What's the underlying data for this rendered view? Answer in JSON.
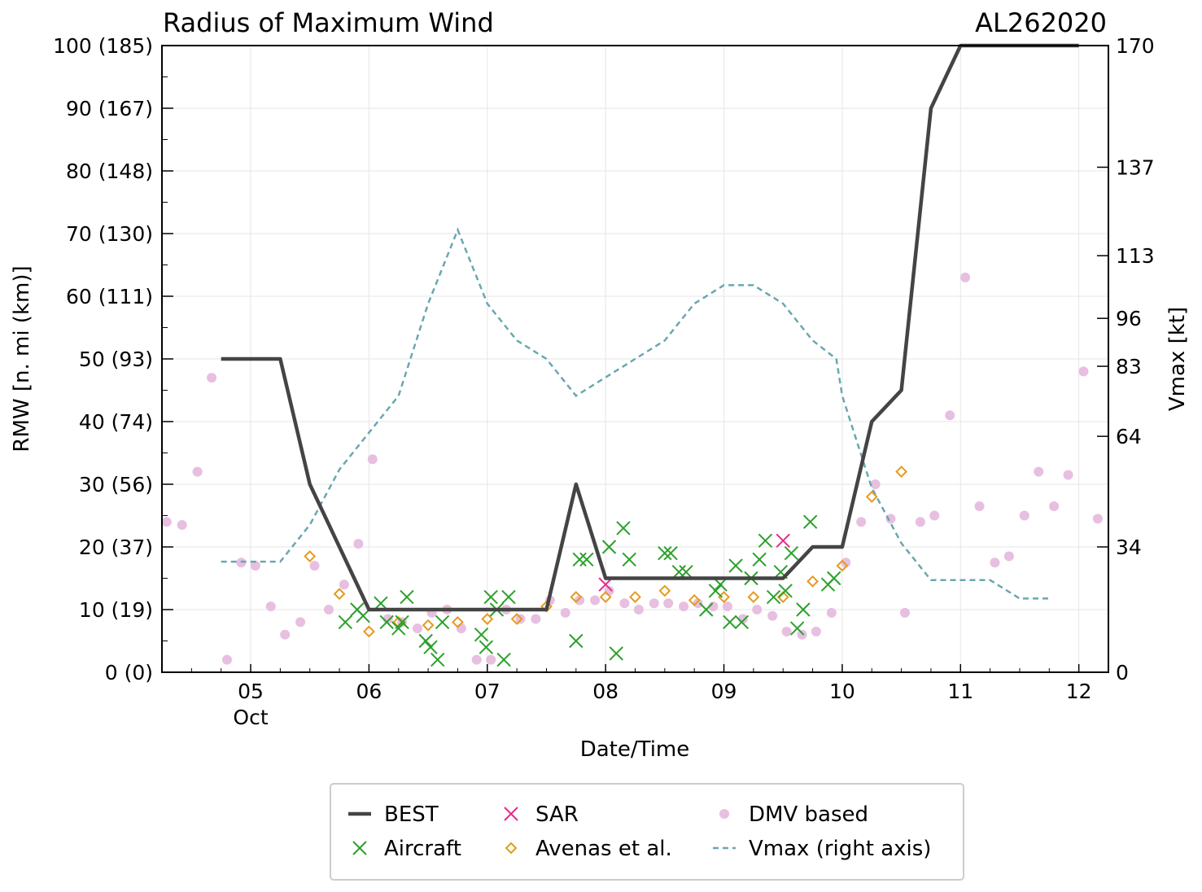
{
  "chart_data": {
    "type": "line+scatter",
    "title": "Radius of Maximum Wind",
    "storm_id": "AL262020",
    "xlabel": "Date/Time",
    "ylabel": "RMW [n. mi (km)]",
    "ylabel_right": "Vmax [kt]",
    "xlim": [
      4.25,
      12.25
    ],
    "ylim": [
      0,
      100
    ],
    "ylim_right": [
      0,
      170
    ],
    "x_ticks": [
      {
        "value": 5,
        "label": "05",
        "sublabel": "Oct"
      },
      {
        "value": 6,
        "label": "06",
        "sublabel": ""
      },
      {
        "value": 7,
        "label": "07",
        "sublabel": ""
      },
      {
        "value": 8,
        "label": "08",
        "sublabel": ""
      },
      {
        "value": 9,
        "label": "09",
        "sublabel": ""
      },
      {
        "value": 10,
        "label": "10",
        "sublabel": ""
      },
      {
        "value": 11,
        "label": "11",
        "sublabel": ""
      },
      {
        "value": 12,
        "label": "12",
        "sublabel": ""
      }
    ],
    "y_ticks": [
      {
        "value": 0,
        "label": "0 (0)"
      },
      {
        "value": 10,
        "label": "10 (19)"
      },
      {
        "value": 20,
        "label": "20 (37)"
      },
      {
        "value": 30,
        "label": "30 (56)"
      },
      {
        "value": 40,
        "label": "40 (74)"
      },
      {
        "value": 50,
        "label": "50 (93)"
      },
      {
        "value": 60,
        "label": "60 (111)"
      },
      {
        "value": 70,
        "label": "70 (130)"
      },
      {
        "value": 80,
        "label": "80 (148)"
      },
      {
        "value": 90,
        "label": "90 (167)"
      },
      {
        "value": 100,
        "label": "100 (185)"
      }
    ],
    "y_right_ticks": [
      {
        "value": 0,
        "label": "0"
      },
      {
        "value": 34,
        "label": "34"
      },
      {
        "value": 64,
        "label": "64"
      },
      {
        "value": 83,
        "label": "83"
      },
      {
        "value": 96,
        "label": "96"
      },
      {
        "value": 113,
        "label": "113"
      },
      {
        "value": 137,
        "label": "137"
      },
      {
        "value": 170,
        "label": "170"
      }
    ],
    "series": {
      "best": {
        "name": "BEST",
        "color": "#444444",
        "x": [
          4.75,
          5.25,
          5.5,
          6.0,
          6.5,
          7.0,
          7.5,
          7.75,
          8.0,
          8.5,
          9.0,
          9.5,
          9.75,
          10.0,
          10.25,
          10.5,
          10.75,
          11.0,
          11.25,
          11.5,
          11.75,
          12.0
        ],
        "y": [
          50,
          50,
          30,
          10,
          10,
          10,
          10,
          30,
          15,
          15,
          15,
          15,
          20,
          20,
          40,
          45,
          90,
          100,
          100,
          100,
          100,
          100
        ]
      },
      "aircraft": {
        "name": "Aircraft",
        "color": "#2ca02c",
        "x": [
          5.8,
          5.9,
          5.95,
          6.1,
          6.15,
          6.25,
          6.28,
          6.32,
          6.48,
          6.52,
          6.58,
          6.62,
          6.95,
          6.99,
          7.03,
          7.08,
          7.14,
          7.18,
          7.75,
          7.78,
          7.84,
          8.03,
          8.09,
          8.15,
          8.2,
          8.5,
          8.55,
          8.62,
          8.68,
          8.85,
          8.93,
          8.97,
          9.05,
          9.1,
          9.15,
          9.23,
          9.3,
          9.35,
          9.42,
          9.48,
          9.52,
          9.57,
          9.62,
          9.67,
          9.73,
          9.88,
          9.93
        ],
        "y": [
          8,
          10,
          9,
          11,
          8,
          7,
          8,
          12,
          5,
          4,
          2,
          8,
          6,
          4,
          12,
          10,
          2,
          12,
          5,
          18,
          18,
          20,
          3,
          23,
          18,
          19,
          19,
          16,
          16,
          10,
          13,
          14,
          8,
          17,
          8,
          15,
          18,
          21,
          12,
          16,
          13,
          19,
          7,
          10,
          24,
          14,
          15
        ]
      },
      "sar": {
        "name": "SAR",
        "color": "#e7298a",
        "x": [
          8.0,
          9.5
        ],
        "y": [
          14,
          21
        ]
      },
      "avenas": {
        "name": "Avenas et al.",
        "color": "#e69a1f",
        "x": [
          5.5,
          5.75,
          6.0,
          6.25,
          6.5,
          6.75,
          7.0,
          7.25,
          7.5,
          7.75,
          8.0,
          8.25,
          8.5,
          8.75,
          9.0,
          9.25,
          9.5,
          9.75,
          10.0,
          10.25,
          10.5
        ],
        "y": [
          18.5,
          12.5,
          6.5,
          8,
          7.5,
          8,
          8.5,
          8.5,
          10.5,
          12,
          12,
          12,
          13,
          11.5,
          12,
          12,
          12,
          14.5,
          17,
          28,
          32
        ]
      },
      "dmv": {
        "name": "DMV based",
        "color": "#e7bfe0",
        "x": [
          4.29,
          4.42,
          4.55,
          4.67,
          4.8,
          4.92,
          5.04,
          5.17,
          5.29,
          5.42,
          5.54,
          5.66,
          5.79,
          5.91,
          6.03,
          6.16,
          6.28,
          6.41,
          6.53,
          6.66,
          6.78,
          6.91,
          7.03,
          7.16,
          7.28,
          7.41,
          7.53,
          7.66,
          7.78,
          7.91,
          8.03,
          8.16,
          8.28,
          8.41,
          8.53,
          8.66,
          8.78,
          8.91,
          9.03,
          9.16,
          9.28,
          9.41,
          9.53,
          9.66,
          9.78,
          9.91,
          10.03,
          10.16,
          10.28,
          10.41,
          10.53,
          10.66,
          10.78,
          10.91,
          11.04,
          11.16,
          11.29,
          11.41,
          11.54,
          11.66,
          11.79,
          11.91,
          12.04,
          12.16
        ],
        "y": [
          24,
          23.5,
          32,
          47,
          2,
          17.5,
          17,
          10.5,
          6,
          8,
          17,
          10,
          14,
          20.5,
          34,
          8.5,
          8,
          7,
          9.5,
          10,
          7,
          2,
          2,
          10,
          8.5,
          8.5,
          11.5,
          9.5,
          11.5,
          11.5,
          13,
          11,
          10,
          11,
          11,
          10.5,
          11,
          10.5,
          10.5,
          8.5,
          10,
          9,
          6.5,
          6,
          6.5,
          9.5,
          17.5,
          24,
          30,
          24.5,
          9.5,
          24,
          25,
          41,
          63,
          26.5,
          17.5,
          18.5,
          25,
          32,
          26.5,
          31.5,
          48,
          24.5
        ]
      },
      "vmax": {
        "name": "Vmax (right axis)",
        "color": "#6aa7b0",
        "x": [
          4.75,
          5.0,
          5.25,
          5.5,
          5.75,
          6.0,
          6.25,
          6.5,
          6.75,
          7.0,
          7.25,
          7.5,
          7.75,
          8.0,
          8.25,
          8.5,
          8.75,
          9.0,
          9.25,
          9.5,
          9.75,
          9.95,
          10.0,
          10.25,
          10.5,
          10.75,
          11.0,
          11.25,
          11.5,
          11.75
        ],
        "y": [
          30,
          30,
          30,
          40,
          55,
          65,
          75,
          100,
          120,
          100,
          90,
          85,
          75,
          80,
          85,
          90,
          100,
          105,
          105,
          100,
          90,
          85,
          75,
          50,
          35,
          25,
          25,
          25,
          20,
          20
        ]
      }
    },
    "legend": {
      "position": "bottom",
      "entries": [
        {
          "key": "best",
          "label": "BEST",
          "marker": "line"
        },
        {
          "key": "sar",
          "label": "SAR",
          "marker": "x"
        },
        {
          "key": "dmv",
          "label": "DMV based",
          "marker": "dot"
        },
        {
          "key": "aircraft",
          "label": "Aircraft",
          "marker": "x"
        },
        {
          "key": "avenas",
          "label": "Avenas et al.",
          "marker": "diamond"
        },
        {
          "key": "vmax",
          "label": "Vmax (right axis)",
          "marker": "dash"
        }
      ]
    }
  }
}
